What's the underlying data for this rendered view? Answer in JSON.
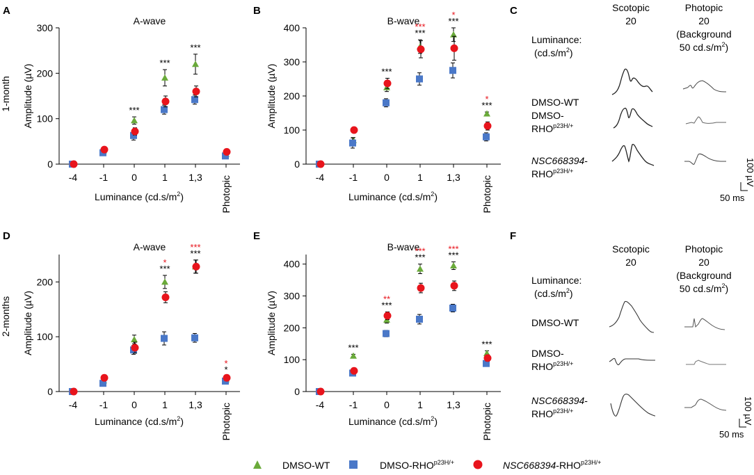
{
  "colors": {
    "wt": "#6aaa3a",
    "rho": "#4a78c8",
    "nsc": "#e8141c",
    "star_black": "#000000",
    "star_red": "#e8141c"
  },
  "panels": {
    "A": "A",
    "B": "B",
    "C": "C",
    "D": "D",
    "E": "E",
    "F": "F"
  },
  "row_labels": {
    "row1": "1-month",
    "row2": "2-months"
  },
  "xlabel": "Luminance (cd.s/m",
  "xlabel_sup": "2",
  "xlabel_end": ")",
  "ylabel": "Amplitude (µV)",
  "legend": {
    "wt": "DMSO-WT",
    "rho_main": "DMSO-RHO",
    "rho_sup": "p23H/+",
    "nsc_italic": "NSC668394",
    "nsc_main": "-RHO",
    "nsc_sup": "p23H/+"
  },
  "traces": {
    "scotopic_title": "Scotopic",
    "scotopic_value": "20",
    "photopic_title": "Photopic",
    "photopic_value": "20",
    "background_line1": "(Background",
    "background_line2": "50 cd.s/m",
    "background_sup": "2",
    "background_end": ")",
    "luminance_label": "Luminance:",
    "units_label": "(cd.s/m",
    "units_sup": "2",
    "units_end": ")",
    "row_wt": "DMSO-WT",
    "row_rho_line1": "DMSO-",
    "row_rho_line2": "RHO",
    "row_rho_sup": "p23H/+",
    "row_nsc_italic": "NSC668394",
    "row_nsc_dash": "-",
    "row_nsc_line2": "RHO",
    "row_nsc_sup": "p23H/+",
    "scale_v": "100 µV",
    "scale_t": "50 ms"
  },
  "chart_data": [
    {
      "panel": "A",
      "type": "scatter",
      "title": "A-wave",
      "categories": [
        "-4",
        "-1",
        "0",
        "1",
        "1,3",
        "Photopic"
      ],
      "ylim": [
        0,
        300
      ],
      "yticks": [
        0,
        100,
        200,
        300
      ],
      "series": [
        {
          "name": "DMSO-WT",
          "values": [
            0,
            30,
            96,
            190,
            220,
            22
          ],
          "errors": [
            2,
            5,
            8,
            18,
            22,
            4
          ]
        },
        {
          "name": "DMSO-RHOp23H/+",
          "values": [
            0,
            25,
            63,
            120,
            142,
            18
          ],
          "errors": [
            2,
            5,
            10,
            10,
            10,
            4
          ]
        },
        {
          "name": "NSC668394-RHOp23H/+",
          "values": [
            0,
            32,
            72,
            138,
            160,
            27
          ],
          "errors": [
            2,
            4,
            8,
            12,
            12,
            3
          ]
        }
      ],
      "annotations": [
        {
          "category": "0",
          "black": "***",
          "red": ""
        },
        {
          "category": "1",
          "black": "***",
          "red": ""
        },
        {
          "category": "1,3",
          "black": "***",
          "red": ""
        }
      ]
    },
    {
      "panel": "B",
      "type": "scatter",
      "title": "B-wave",
      "categories": [
        "-4",
        "-1",
        "0",
        "1",
        "1,3",
        "Photopic"
      ],
      "ylim": [
        0,
        400
      ],
      "yticks": [
        0,
        100,
        200,
        300,
        400
      ],
      "series": [
        {
          "name": "DMSO-WT",
          "values": [
            0,
            70,
            225,
            345,
            380,
            148
          ],
          "errors": [
            2,
            8,
            12,
            20,
            20,
            5
          ]
        },
        {
          "name": "DMSO-RHOp23H/+",
          "values": [
            0,
            62,
            180,
            250,
            275,
            80
          ],
          "errors": [
            2,
            15,
            12,
            18,
            22,
            12
          ]
        },
        {
          "name": "NSC668394-RHOp23H/+",
          "values": [
            0,
            100,
            237,
            337,
            340,
            112
          ],
          "errors": [
            2,
            8,
            15,
            25,
            35,
            12
          ]
        }
      ],
      "annotations": [
        {
          "category": "0",
          "black": "***",
          "red": ""
        },
        {
          "category": "1",
          "black": "***",
          "red": "***"
        },
        {
          "category": "1,3",
          "black": "***",
          "red": "*"
        },
        {
          "category": "Photopic",
          "black": "***",
          "red": "*"
        }
      ]
    },
    {
      "panel": "D",
      "type": "scatter",
      "title": "A-wave",
      "categories": [
        "-4",
        "-1",
        "0",
        "1",
        "1,3",
        "Photopic"
      ],
      "ylim": [
        0,
        250
      ],
      "yticks": [
        0,
        100,
        200
      ],
      "series": [
        {
          "name": "DMSO-WT",
          "values": [
            0,
            20,
            95,
            200,
            228,
            22
          ],
          "errors": [
            2,
            5,
            8,
            12,
            12,
            3
          ]
        },
        {
          "name": "DMSO-RHOp23H/+",
          "values": [
            0,
            15,
            76,
            97,
            98,
            19
          ],
          "errors": [
            2,
            4,
            8,
            12,
            8,
            3
          ]
        },
        {
          "name": "NSC668394-RHOp23H/+",
          "values": [
            0,
            25,
            80,
            172,
            228,
            25
          ],
          "errors": [
            2,
            4,
            10,
            10,
            12,
            3
          ]
        }
      ],
      "annotations": [
        {
          "category": "1",
          "black": "***",
          "red": "*"
        },
        {
          "category": "1,3",
          "black": "***",
          "red": "***"
        },
        {
          "category": "Photopic",
          "black": "*",
          "red": "*"
        }
      ]
    },
    {
      "panel": "E",
      "type": "scatter",
      "title": "B-wave",
      "categories": [
        "-4",
        "-1",
        "0",
        "1",
        "1,3",
        "Photopic"
      ],
      "ylim": [
        0,
        430
      ],
      "yticks": [
        0,
        100,
        200,
        300,
        400
      ],
      "series": [
        {
          "name": "DMSO-WT",
          "values": [
            0,
            112,
            225,
            385,
            395,
            120
          ],
          "errors": [
            2,
            5,
            10,
            15,
            12,
            8
          ]
        },
        {
          "name": "DMSO-RHOp23H/+",
          "values": [
            0,
            58,
            182,
            227,
            262,
            88
          ],
          "errors": [
            2,
            8,
            10,
            15,
            12,
            5
          ]
        },
        {
          "name": "NSC668394-RHOp23H/+",
          "values": [
            0,
            65,
            238,
            325,
            332,
            105
          ],
          "errors": [
            2,
            5,
            12,
            15,
            15,
            10
          ]
        }
      ],
      "annotations": [
        {
          "category": "-1",
          "black": "***",
          "red": ""
        },
        {
          "category": "0",
          "black": "***",
          "red": "**"
        },
        {
          "category": "1",
          "black": "***",
          "red": "***"
        },
        {
          "category": "1,3",
          "black": "***",
          "red": "***"
        },
        {
          "category": "Photopic",
          "black": "***",
          "red": ""
        }
      ]
    }
  ]
}
